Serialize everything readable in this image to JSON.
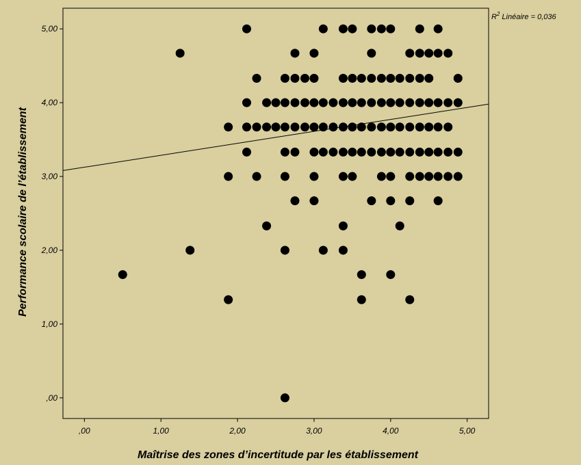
{
  "chart_data": {
    "type": "scatter",
    "title": "",
    "xlabel": "Maîtrise des zones d’incertitude par les établissement",
    "ylabel": "Performance scolaire de l’établissement",
    "xlim": [
      -0.28,
      5.28
    ],
    "ylim": [
      -0.28,
      5.28
    ],
    "x_ticks": [
      0,
      1,
      2,
      3,
      4,
      5
    ],
    "x_tick_labels": [
      ",00",
      "1,00",
      "2,00",
      "3,00",
      "4,00",
      "5,00"
    ],
    "y_ticks": [
      0,
      1,
      2,
      3,
      4,
      5
    ],
    "y_tick_labels": [
      ",00",
      "1,00",
      "2,00",
      "3,00",
      "4,00",
      "5,00"
    ],
    "grid": false,
    "colors": {
      "plot_background": "#d9cf9f",
      "points": "#000000",
      "fit_line": "#000000"
    },
    "fit_line": {
      "label_prefix": "R",
      "label_superscript": "2",
      "label_text": "Linéaire = 0,036",
      "points": [
        [
          -0.28,
          3.08
        ],
        [
          5.28,
          3.98
        ]
      ]
    },
    "points": [
      [
        2.12,
        5.0
      ],
      [
        3.12,
        5.0
      ],
      [
        3.38,
        5.0
      ],
      [
        3.5,
        5.0
      ],
      [
        3.75,
        5.0
      ],
      [
        3.88,
        5.0
      ],
      [
        4.0,
        5.0
      ],
      [
        4.38,
        5.0
      ],
      [
        4.62,
        5.0
      ],
      [
        1.25,
        4.67
      ],
      [
        2.75,
        4.67
      ],
      [
        3.0,
        4.67
      ],
      [
        3.75,
        4.67
      ],
      [
        4.25,
        4.67
      ],
      [
        4.38,
        4.67
      ],
      [
        4.5,
        4.67
      ],
      [
        4.62,
        4.67
      ],
      [
        4.75,
        4.67
      ],
      [
        2.25,
        4.33
      ],
      [
        2.62,
        4.33
      ],
      [
        2.75,
        4.33
      ],
      [
        2.88,
        4.33
      ],
      [
        3.0,
        4.33
      ],
      [
        3.38,
        4.33
      ],
      [
        3.5,
        4.33
      ],
      [
        3.62,
        4.33
      ],
      [
        3.75,
        4.33
      ],
      [
        3.88,
        4.33
      ],
      [
        4.0,
        4.33
      ],
      [
        4.12,
        4.33
      ],
      [
        4.25,
        4.33
      ],
      [
        4.38,
        4.33
      ],
      [
        4.5,
        4.33
      ],
      [
        4.88,
        4.33
      ],
      [
        2.12,
        4.0
      ],
      [
        2.38,
        4.0
      ],
      [
        2.5,
        4.0
      ],
      [
        2.62,
        4.0
      ],
      [
        2.75,
        4.0
      ],
      [
        2.88,
        4.0
      ],
      [
        3.0,
        4.0
      ],
      [
        3.12,
        4.0
      ],
      [
        3.25,
        4.0
      ],
      [
        3.38,
        4.0
      ],
      [
        3.5,
        4.0
      ],
      [
        3.62,
        4.0
      ],
      [
        3.75,
        4.0
      ],
      [
        3.88,
        4.0
      ],
      [
        4.0,
        4.0
      ],
      [
        4.12,
        4.0
      ],
      [
        4.25,
        4.0
      ],
      [
        4.38,
        4.0
      ],
      [
        4.5,
        4.0
      ],
      [
        4.62,
        4.0
      ],
      [
        4.75,
        4.0
      ],
      [
        4.88,
        4.0
      ],
      [
        1.88,
        3.67
      ],
      [
        2.12,
        3.67
      ],
      [
        2.25,
        3.67
      ],
      [
        2.38,
        3.67
      ],
      [
        2.5,
        3.67
      ],
      [
        2.62,
        3.67
      ],
      [
        2.75,
        3.67
      ],
      [
        2.88,
        3.67
      ],
      [
        3.0,
        3.67
      ],
      [
        3.12,
        3.67
      ],
      [
        3.25,
        3.67
      ],
      [
        3.38,
        3.67
      ],
      [
        3.5,
        3.67
      ],
      [
        3.62,
        3.67
      ],
      [
        3.75,
        3.67
      ],
      [
        3.88,
        3.67
      ],
      [
        4.0,
        3.67
      ],
      [
        4.12,
        3.67
      ],
      [
        4.25,
        3.67
      ],
      [
        4.38,
        3.67
      ],
      [
        4.5,
        3.67
      ],
      [
        4.62,
        3.67
      ],
      [
        4.75,
        3.67
      ],
      [
        2.12,
        3.33
      ],
      [
        2.62,
        3.33
      ],
      [
        2.75,
        3.33
      ],
      [
        3.0,
        3.33
      ],
      [
        3.12,
        3.33
      ],
      [
        3.25,
        3.33
      ],
      [
        3.38,
        3.33
      ],
      [
        3.5,
        3.33
      ],
      [
        3.62,
        3.33
      ],
      [
        3.75,
        3.33
      ],
      [
        3.88,
        3.33
      ],
      [
        4.0,
        3.33
      ],
      [
        4.12,
        3.33
      ],
      [
        4.25,
        3.33
      ],
      [
        4.38,
        3.33
      ],
      [
        4.5,
        3.33
      ],
      [
        4.62,
        3.33
      ],
      [
        4.75,
        3.33
      ],
      [
        4.88,
        3.33
      ],
      [
        1.88,
        3.0
      ],
      [
        2.25,
        3.0
      ],
      [
        2.62,
        3.0
      ],
      [
        3.0,
        3.0
      ],
      [
        3.38,
        3.0
      ],
      [
        3.5,
        3.0
      ],
      [
        3.88,
        3.0
      ],
      [
        4.0,
        3.0
      ],
      [
        4.25,
        3.0
      ],
      [
        4.38,
        3.0
      ],
      [
        4.5,
        3.0
      ],
      [
        4.62,
        3.0
      ],
      [
        4.75,
        3.0
      ],
      [
        4.88,
        3.0
      ],
      [
        2.75,
        2.67
      ],
      [
        3.0,
        2.67
      ],
      [
        3.75,
        2.67
      ],
      [
        4.0,
        2.67
      ],
      [
        4.25,
        2.67
      ],
      [
        4.62,
        2.67
      ],
      [
        2.38,
        2.33
      ],
      [
        3.38,
        2.33
      ],
      [
        4.12,
        2.33
      ],
      [
        1.38,
        2.0
      ],
      [
        2.62,
        2.0
      ],
      [
        3.12,
        2.0
      ],
      [
        3.38,
        2.0
      ],
      [
        0.5,
        1.67
      ],
      [
        3.62,
        1.67
      ],
      [
        4.0,
        1.67
      ],
      [
        1.88,
        1.33
      ],
      [
        3.62,
        1.33
      ],
      [
        4.25,
        1.33
      ],
      [
        2.62,
        0.0
      ]
    ]
  }
}
